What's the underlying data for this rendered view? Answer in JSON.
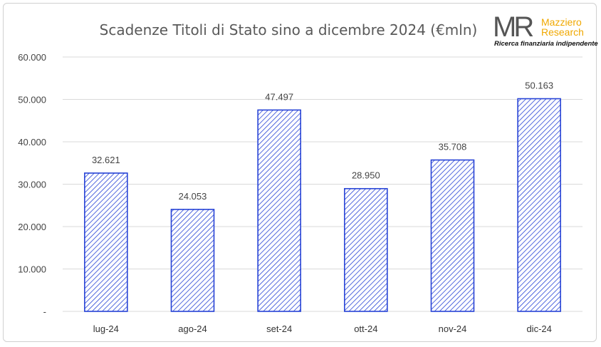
{
  "chart_data": {
    "type": "bar",
    "title": "Scadenze Titoli di Stato sino a dicembre 2024 (€mln)",
    "categories": [
      "lug-24",
      "ago-24",
      "set-24",
      "ott-24",
      "nov-24",
      "dic-24"
    ],
    "values": [
      32621,
      24053,
      47497,
      28950,
      35708,
      50163
    ],
    "value_labels": [
      "32.621",
      "24.053",
      "47.497",
      "28.950",
      "35.708",
      "50.163"
    ],
    "ylim": [
      0,
      60000
    ],
    "y_ticks": [
      0,
      10000,
      20000,
      30000,
      40000,
      50000,
      60000
    ],
    "y_tick_labels": [
      "-",
      "10.000",
      "20.000",
      "30.000",
      "40.000",
      "50.000",
      "60.000"
    ],
    "grid": true,
    "bar_style": "hatched"
  },
  "logo": {
    "mark": "MR",
    "name_line1": "Mazziero",
    "name_line2": "Research",
    "tagline": "Ricerca finanziaria indipendente"
  },
  "colors": {
    "bar_border": "#2743d6",
    "hatch": "#2743d6",
    "grid": "#d9d9d9",
    "logo_accent": "#f0a800"
  }
}
